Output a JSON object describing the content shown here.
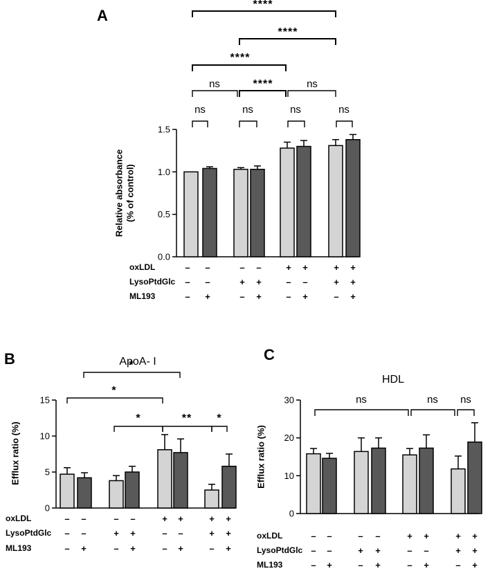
{
  "chart_data": [
    {
      "type": "bar",
      "panel": "A",
      "title": "",
      "ylabel": "Relative absorbance\n(% of control)",
      "ylim": [
        0,
        1.5
      ],
      "yticks": [
        "0.0",
        "0.5",
        "1.0",
        "1.5"
      ],
      "values": [
        1.0,
        1.04,
        1.03,
        1.03,
        1.28,
        1.3,
        1.31,
        1.38
      ],
      "errors": [
        0.0,
        0.02,
        0.02,
        0.04,
        0.07,
        0.07,
        0.07,
        0.06
      ],
      "bar_colors": [
        "#d4d4d4",
        "#595959",
        "#d4d4d4",
        "#595959",
        "#d4d4d4",
        "#595959",
        "#d4d4d4",
        "#595959"
      ],
      "conditions": [
        {
          "label": "oxLDL",
          "signs": [
            "–",
            "–",
            "–",
            "–",
            "+",
            "+",
            "+",
            "+"
          ]
        },
        {
          "label": "LysoPtdGlc",
          "signs": [
            "–",
            "–",
            "+",
            "+",
            "–",
            "–",
            "+",
            "+"
          ]
        },
        {
          "label": "ML193",
          "signs": [
            "–",
            "+",
            "–",
            "+",
            "–",
            "+",
            "–",
            "+"
          ]
        }
      ],
      "significance": [
        {
          "from": 0,
          "to": 1,
          "label": "ns"
        },
        {
          "from": 2,
          "to": 3,
          "label": "ns"
        },
        {
          "from": 4,
          "to": 5,
          "label": "ns"
        },
        {
          "from": 6,
          "to": 7,
          "label": "ns"
        },
        {
          "from": "g1",
          "to": "g2",
          "label": "ns"
        },
        {
          "from": "g2",
          "to": "g3",
          "label": "****"
        },
        {
          "from": "g3",
          "to": "g4",
          "label": "ns"
        },
        {
          "from": "g1",
          "to": "g3",
          "label": "****"
        },
        {
          "from": "g2",
          "to": "g4",
          "label": "****"
        },
        {
          "from": "g1",
          "to": "g4",
          "label": "****"
        }
      ]
    },
    {
      "type": "bar",
      "panel": "B",
      "title": "ApoA- I",
      "ylabel": "Efflux ratio (%)",
      "ylim": [
        0,
        15
      ],
      "yticks": [
        "0",
        "5",
        "10",
        "15"
      ],
      "values": [
        4.7,
        4.2,
        3.8,
        5.0,
        8.1,
        7.7,
        2.5,
        5.8
      ],
      "errors": [
        0.9,
        0.7,
        0.7,
        0.8,
        2.1,
        1.9,
        0.8,
        1.7
      ],
      "bar_colors": [
        "#d4d4d4",
        "#595959",
        "#d4d4d4",
        "#595959",
        "#d4d4d4",
        "#595959",
        "#d4d4d4",
        "#595959"
      ],
      "conditions": [
        {
          "label": "oxLDL",
          "signs": [
            "–",
            "–",
            "–",
            "–",
            "+",
            "+",
            "+",
            "+"
          ]
        },
        {
          "label": "LysoPtdGlc",
          "signs": [
            "–",
            "–",
            "+",
            "+",
            "–",
            "–",
            "+",
            "+"
          ]
        },
        {
          "label": "ML193",
          "signs": [
            "–",
            "+",
            "–",
            "+",
            "–",
            "+",
            "–",
            "+"
          ]
        }
      ],
      "significance": [
        {
          "from": 2,
          "to": 4,
          "label": "*"
        },
        {
          "from": 4,
          "to": 6,
          "label": "**"
        },
        {
          "from": 6,
          "to": 7,
          "label": "*"
        },
        {
          "from": 0,
          "to": 4,
          "label": "*"
        },
        {
          "from": 1,
          "to": 5,
          "label": "*"
        }
      ]
    },
    {
      "type": "bar",
      "panel": "C",
      "title": "HDL",
      "ylabel": "Efflux ratio (%)",
      "ylim": [
        0,
        30
      ],
      "yticks": [
        "0",
        "10",
        "20",
        "30"
      ],
      "values": [
        15.8,
        14.6,
        16.4,
        17.3,
        15.5,
        17.3,
        11.8,
        18.9
      ],
      "errors": [
        1.4,
        1.3,
        3.6,
        2.7,
        1.7,
        3.5,
        3.4,
        5.1
      ],
      "bar_colors": [
        "#d4d4d4",
        "#595959",
        "#d4d4d4",
        "#595959",
        "#d4d4d4",
        "#595959",
        "#d4d4d4",
        "#595959"
      ],
      "conditions": [
        {
          "label": "oxLDL",
          "signs": [
            "–",
            "–",
            "–",
            "–",
            "+",
            "+",
            "+",
            "+"
          ]
        },
        {
          "label": "LysoPtdGlc",
          "signs": [
            "–",
            "–",
            "+",
            "+",
            "–",
            "–",
            "+",
            "+"
          ]
        },
        {
          "label": "ML193",
          "signs": [
            "–",
            "+",
            "–",
            "+",
            "–",
            "+",
            "–",
            "+"
          ]
        }
      ],
      "significance": [
        {
          "from": 0,
          "to": 4,
          "label": "ns"
        },
        {
          "from": 4,
          "to": 5,
          "label": "ns"
        },
        {
          "from": 6,
          "to": 7,
          "label": "ns"
        }
      ]
    }
  ]
}
